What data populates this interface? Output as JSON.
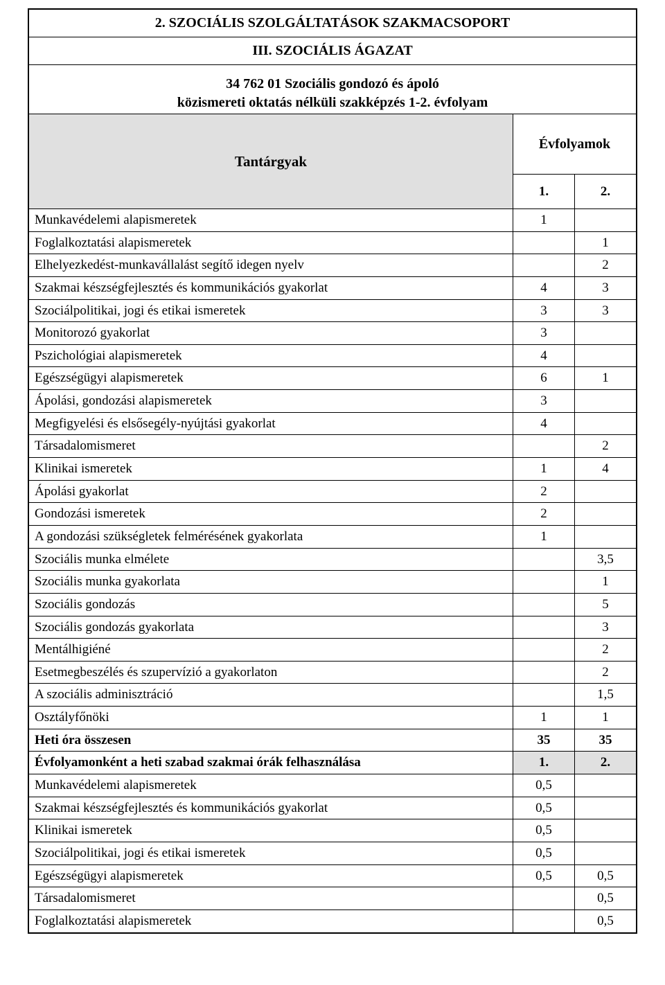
{
  "header": {
    "title": "2. SZOCIÁLIS SZOLGÁLTATÁSOK SZAKMACSOPORT",
    "subtitle": "III. SZOCIÁLIS ÁGAZAT",
    "intro_line1": "34 762 01 Szociális gondozó és ápoló",
    "intro_line2": "közismereti oktatás nélküli szakképzés 1-2. évfolyam",
    "tantargyak_label": "Tantárgyak",
    "evfolyamok_label": "Évfolyamok",
    "year1": "1.",
    "year2": "2."
  },
  "rows": [
    {
      "label": "Munkavédelemi alapismeretek",
      "v1": "1",
      "v2": ""
    },
    {
      "label": "Foglalkoztatási alapismeretek",
      "v1": "",
      "v2": "1"
    },
    {
      "label": "Elhelyezkedést-munkavállalást segítő idegen nyelv",
      "v1": "",
      "v2": "2"
    },
    {
      "label": "Szakmai készségfejlesztés és kommunikációs gyakorlat",
      "v1": "4",
      "v2": "3"
    },
    {
      "label": "Szociálpolitikai, jogi és etikai ismeretek",
      "v1": "3",
      "v2": "3"
    },
    {
      "label": "Monitorozó gyakorlat",
      "v1": "3",
      "v2": ""
    },
    {
      "label": "Pszichológiai alapismeretek",
      "v1": "4",
      "v2": ""
    },
    {
      "label": "Egészségügyi alapismeretek",
      "v1": "6",
      "v2": "1"
    },
    {
      "label": "Ápolási, gondozási alapismeretek",
      "v1": "3",
      "v2": ""
    },
    {
      "label": "Megfigyelési és elsősegély-nyújtási gyakorlat",
      "v1": "4",
      "v2": ""
    },
    {
      "label": "Társadalomismeret",
      "v1": "",
      "v2": "2"
    },
    {
      "label": "Klinikai ismeretek",
      "v1": "1",
      "v2": "4"
    },
    {
      "label": "Ápolási gyakorlat",
      "v1": "2",
      "v2": ""
    },
    {
      "label": "Gondozási ismeretek",
      "v1": "2",
      "v2": ""
    },
    {
      "label": "A gondozási szükségletek felmérésének gyakorlata",
      "v1": "1",
      "v2": ""
    },
    {
      "label": "Szociális munka elmélete",
      "v1": "",
      "v2": "3,5"
    },
    {
      "label": "Szociális munka gyakorlata",
      "v1": "",
      "v2": "1"
    },
    {
      "label": "Szociális gondozás",
      "v1": "",
      "v2": "5"
    },
    {
      "label": "Szociális gondozás gyakorlata",
      "v1": "",
      "v2": "3"
    },
    {
      "label": "Mentálhigiéné",
      "v1": "",
      "v2": "2"
    },
    {
      "label": "Esetmegbeszélés és szupervízió a gyakorlaton",
      "v1": "",
      "v2": "2"
    },
    {
      "label": "A szociális adminisztráció",
      "v1": "",
      "v2": "1,5"
    },
    {
      "label": "Osztályfőnöki",
      "v1": "1",
      "v2": "1"
    }
  ],
  "total_row": {
    "label": "Heti óra összesen",
    "v1": "35",
    "v2": "35"
  },
  "free_header": {
    "label": "Évfolyamonként a heti szabad szakmai órák felhasználása",
    "v1": "1.",
    "v2": "2."
  },
  "free_rows": [
    {
      "label": "Munkavédelemi alapismeretek",
      "v1": "0,5",
      "v2": ""
    },
    {
      "label": "Szakmai készségfejlesztés és kommunikációs gyakorlat",
      "v1": "0,5",
      "v2": ""
    },
    {
      "label": "Klinikai ismeretek",
      "v1": "0,5",
      "v2": ""
    },
    {
      "label": "Szociálpolitikai, jogi és etikai ismeretek",
      "v1": "0,5",
      "v2": ""
    },
    {
      "label": "Egészségügyi alapismeretek",
      "v1": "0,5",
      "v2": "0,5"
    },
    {
      "label": "Társadalomismeret",
      "v1": "",
      "v2": "0,5"
    },
    {
      "label": "Foglalkoztatási alapismeretek",
      "v1": "",
      "v2": "0,5"
    }
  ]
}
